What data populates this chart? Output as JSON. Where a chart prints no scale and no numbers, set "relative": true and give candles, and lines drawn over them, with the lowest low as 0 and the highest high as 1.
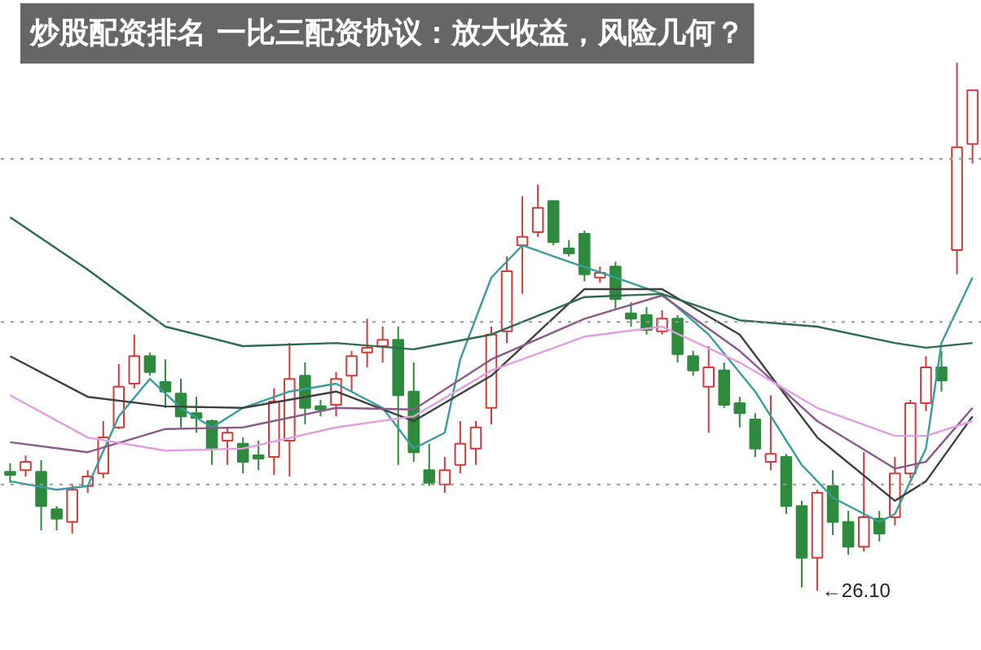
{
  "chart_data": {
    "type": "candlestick",
    "relative": true,
    "title": "炒股配资排名 一比三配资协议：放大收益，风险几何？",
    "categories": [
      null,
      null,
      null,
      null,
      null,
      null,
      null,
      null,
      null,
      null,
      null,
      null,
      null,
      null,
      null,
      null,
      null,
      null,
      null,
      null,
      null,
      null,
      null,
      null,
      null,
      null,
      null,
      null,
      null,
      null,
      null,
      null,
      null,
      null,
      null,
      null,
      null,
      null,
      null,
      null,
      null,
      null,
      null,
      null,
      null,
      null,
      null,
      null,
      null,
      null,
      null,
      null,
      null,
      null,
      null,
      null,
      null,
      null,
      null,
      null,
      null,
      null,
      null
    ],
    "ohlc": [
      [
        0.225,
        0.241,
        0.204,
        0.219
      ],
      [
        0.228,
        0.256,
        0.216,
        0.244
      ],
      [
        0.225,
        0.247,
        0.114,
        0.16
      ],
      [
        0.154,
        0.16,
        0.114,
        0.136
      ],
      [
        0.13,
        0.201,
        0.108,
        0.191
      ],
      [
        0.198,
        0.228,
        0.185,
        0.216
      ],
      [
        0.222,
        0.321,
        0.213,
        0.29
      ],
      [
        0.309,
        0.429,
        0.306,
        0.386
      ],
      [
        0.392,
        0.485,
        0.383,
        0.444
      ],
      [
        0.444,
        0.451,
        0.407,
        0.414
      ],
      [
        0.395,
        0.438,
        0.346,
        0.377
      ],
      [
        0.373,
        0.401,
        0.309,
        0.33
      ],
      [
        0.336,
        0.367,
        0.299,
        0.327
      ],
      [
        0.321,
        0.324,
        0.238,
        0.269
      ],
      [
        0.284,
        0.309,
        0.238,
        0.299
      ],
      [
        0.278,
        0.29,
        0.222,
        0.244
      ],
      [
        0.256,
        0.284,
        0.228,
        0.25
      ],
      [
        0.253,
        0.383,
        0.219,
        0.358
      ],
      [
        0.284,
        0.469,
        0.216,
        0.401
      ],
      [
        0.407,
        0.432,
        0.315,
        0.346
      ],
      [
        0.349,
        0.361,
        0.33,
        0.343
      ],
      [
        0.352,
        0.414,
        0.33,
        0.401
      ],
      [
        0.407,
        0.454,
        0.377,
        0.444
      ],
      [
        0.451,
        0.515,
        0.423,
        0.46
      ],
      [
        0.463,
        0.5,
        0.432,
        0.475
      ],
      [
        0.475,
        0.5,
        0.238,
        0.37
      ],
      [
        0.377,
        0.432,
        0.244,
        0.262
      ],
      [
        0.228,
        0.278,
        0.198,
        0.204
      ],
      [
        0.201,
        0.253,
        0.185,
        0.228
      ],
      [
        0.238,
        0.321,
        0.222,
        0.278
      ],
      [
        0.269,
        0.321,
        0.238,
        0.309
      ],
      [
        0.346,
        0.5,
        0.315,
        0.485
      ],
      [
        0.491,
        0.633,
        0.469,
        0.605
      ],
      [
        0.654,
        0.747,
        0.562,
        0.67
      ],
      [
        0.679,
        0.769,
        0.67,
        0.725
      ],
      [
        0.738,
        0.738,
        0.654,
        0.66
      ],
      [
        0.648,
        0.664,
        0.633,
        0.639
      ],
      [
        0.676,
        0.682,
        0.586,
        0.599
      ],
      [
        0.593,
        0.614,
        0.583,
        0.602
      ],
      [
        0.614,
        0.623,
        0.531,
        0.552
      ],
      [
        0.525,
        0.546,
        0.5,
        0.515
      ],
      [
        0.522,
        0.537,
        0.485,
        0.494
      ],
      [
        0.491,
        0.531,
        0.485,
        0.515
      ],
      [
        0.515,
        0.522,
        0.432,
        0.448
      ],
      [
        0.444,
        0.454,
        0.407,
        0.417
      ],
      [
        0.386,
        0.463,
        0.299,
        0.423
      ],
      [
        0.417,
        0.432,
        0.346,
        0.352
      ],
      [
        0.355,
        0.367,
        0.309,
        0.336
      ],
      [
        0.324,
        0.336,
        0.253,
        0.269
      ],
      [
        0.244,
        0.37,
        0.228,
        0.259
      ],
      [
        0.253,
        0.259,
        0.145,
        0.16
      ],
      [
        0.16,
        0.17,
        0.006,
        0.062
      ],
      [
        0.062,
        0.191,
        0.0,
        0.185
      ],
      [
        0.198,
        0.228,
        0.105,
        0.13
      ],
      [
        0.13,
        0.151,
        0.068,
        0.083
      ],
      [
        0.083,
        0.262,
        0.074,
        0.139
      ],
      [
        0.136,
        0.151,
        0.093,
        0.108
      ],
      [
        0.139,
        0.253,
        0.123,
        0.222
      ],
      [
        0.222,
        0.361,
        0.213,
        0.355
      ],
      [
        0.355,
        0.444,
        0.34,
        0.423
      ],
      [
        0.423,
        0.454,
        0.377,
        0.398
      ],
      [
        0.645,
        1.0,
        0.599,
        0.84
      ],
      [
        0.846,
        0.948,
        0.809,
        0.948
      ]
    ],
    "colors": [
      "#2e8b3e",
      "#d03c3c",
      "#2e8b3e",
      "#2e8b3e",
      "#d03c3c",
      "#d03c3c",
      "#d03c3c",
      "#d03c3c",
      "#d03c3c",
      "#2e8b3e",
      "#2e8b3e",
      "#2e8b3e",
      "#2e8b3e",
      "#2e8b3e",
      "#d03c3c",
      "#2e8b3e",
      "#2e8b3e",
      "#d03c3c",
      "#d03c3c",
      "#2e8b3e",
      "#2e8b3e",
      "#d03c3c",
      "#d03c3c",
      "#d03c3c",
      "#d03c3c",
      "#2e8b3e",
      "#2e8b3e",
      "#2e8b3e",
      "#d03c3c",
      "#d03c3c",
      "#d03c3c",
      "#d03c3c",
      "#d03c3c",
      "#d03c3c",
      "#d03c3c",
      "#2e8b3e",
      "#2e8b3e",
      "#2e8b3e",
      "#d03c3c",
      "#2e8b3e",
      "#2e8b3e",
      "#2e8b3e",
      "#d03c3c",
      "#2e8b3e",
      "#2e8b3e",
      "#d03c3c",
      "#2e8b3e",
      "#2e8b3e",
      "#2e8b3e",
      "#d03c3c",
      "#2e8b3e",
      "#2e8b3e",
      "#d03c3c",
      "#2e8b3e",
      "#2e8b3e",
      "#d03c3c",
      "#2e8b3e",
      "#d03c3c",
      "#d03c3c",
      "#d03c3c",
      "#2e8b3e",
      "#d03c3c",
      "#d03c3c"
    ],
    "series": [
      {
        "type": "line",
        "color": "#3a9c9c",
        "values": [
          0.207,
          null,
          null,
          0.191,
          null,
          0.198,
          null,
          0.33,
          null,
          0.401,
          null,
          0.346,
          null,
          0.309,
          null,
          0.346,
          null,
          null,
          0.377,
          null,
          null,
          0.392,
          null,
          null,
          0.346,
          null,
          0.269,
          null,
          0.299,
          0.438,
          null,
          0.593,
          null,
          0.654,
          null,
          null,
          0.623,
          null,
          null,
          0.593,
          null,
          null,
          0.562,
          null,
          null,
          0.485,
          null,
          null,
          0.377,
          null,
          null,
          0.238,
          null,
          0.176,
          null,
          null,
          0.13,
          0.145,
          null,
          0.269,
          0.469,
          null,
          0.593
        ]
      },
      {
        "type": "line",
        "color": "#404040",
        "values": [
          0.444,
          null,
          null,
          null,
          null,
          0.367,
          null,
          null,
          null,
          null,
          0.349,
          null,
          null,
          null,
          null,
          0.346,
          null,
          null,
          null,
          null,
          null,
          0.377,
          null,
          null,
          null,
          null,
          0.321,
          null,
          null,
          null,
          null,
          0.407,
          null,
          null,
          null,
          null,
          null,
          0.571,
          null,
          null,
          null,
          null,
          0.571,
          null,
          null,
          null,
          null,
          0.485,
          null,
          null,
          null,
          null,
          0.29,
          null,
          null,
          null,
          null,
          0.17,
          null,
          0.207,
          null,
          null,
          0.33
        ]
      },
      {
        "type": "line",
        "color": "#8a5a8a",
        "values": [
          0.281,
          null,
          null,
          null,
          null,
          0.262,
          null,
          null,
          null,
          null,
          0.306,
          null,
          null,
          null,
          null,
          0.309,
          null,
          null,
          null,
          null,
          null,
          0.346,
          null,
          null,
          null,
          null,
          0.343,
          null,
          null,
          null,
          null,
          0.438,
          null,
          null,
          null,
          null,
          null,
          0.515,
          null,
          null,
          null,
          null,
          0.559,
          null,
          null,
          null,
          null,
          0.454,
          null,
          null,
          null,
          null,
          0.321,
          null,
          null,
          null,
          null,
          0.231,
          null,
          0.244,
          null,
          null,
          0.346
        ]
      },
      {
        "type": "line",
        "color": "#e0a0e0",
        "values": [
          0.37,
          null,
          null,
          null,
          null,
          0.29,
          null,
          null,
          null,
          null,
          0.265,
          null,
          null,
          null,
          null,
          0.269,
          null,
          null,
          null,
          null,
          null,
          0.309,
          null,
          null,
          null,
          null,
          0.33,
          null,
          null,
          null,
          null,
          0.417,
          null,
          null,
          null,
          null,
          null,
          0.481,
          null,
          null,
          null,
          null,
          0.5,
          null,
          null,
          null,
          null,
          0.432,
          null,
          null,
          null,
          null,
          0.346,
          null,
          null,
          null,
          null,
          0.293,
          null,
          0.293,
          null,
          null,
          0.321
        ]
      },
      {
        "type": "line",
        "color": "#2e6b4e",
        "values": [
          0.707,
          null,
          null,
          null,
          null,
          0.608,
          null,
          null,
          null,
          null,
          0.5,
          null,
          null,
          null,
          null,
          0.463,
          null,
          null,
          null,
          null,
          null,
          0.469,
          null,
          null,
          null,
          null,
          0.457,
          null,
          null,
          null,
          null,
          0.485,
          null,
          null,
          null,
          null,
          null,
          0.556,
          null,
          null,
          null,
          null,
          0.562,
          null,
          null,
          null,
          null,
          0.512,
          null,
          null,
          null,
          null,
          0.5,
          null,
          null,
          null,
          null,
          0.469,
          null,
          0.46,
          null,
          null,
          0.469
        ]
      }
    ],
    "ref_lines": [
      {
        "axis": "y",
        "value": 0.818,
        "color": "#999999",
        "line_style": "dotted"
      },
      {
        "axis": "y",
        "value": 0.509,
        "color": "#999999",
        "line_style": "dotted"
      },
      {
        "axis": "y",
        "value": 0.201,
        "color": "#999999",
        "line_style": "dotted"
      }
    ],
    "annotations": [
      "←26.10"
    ],
    "grid": false
  }
}
